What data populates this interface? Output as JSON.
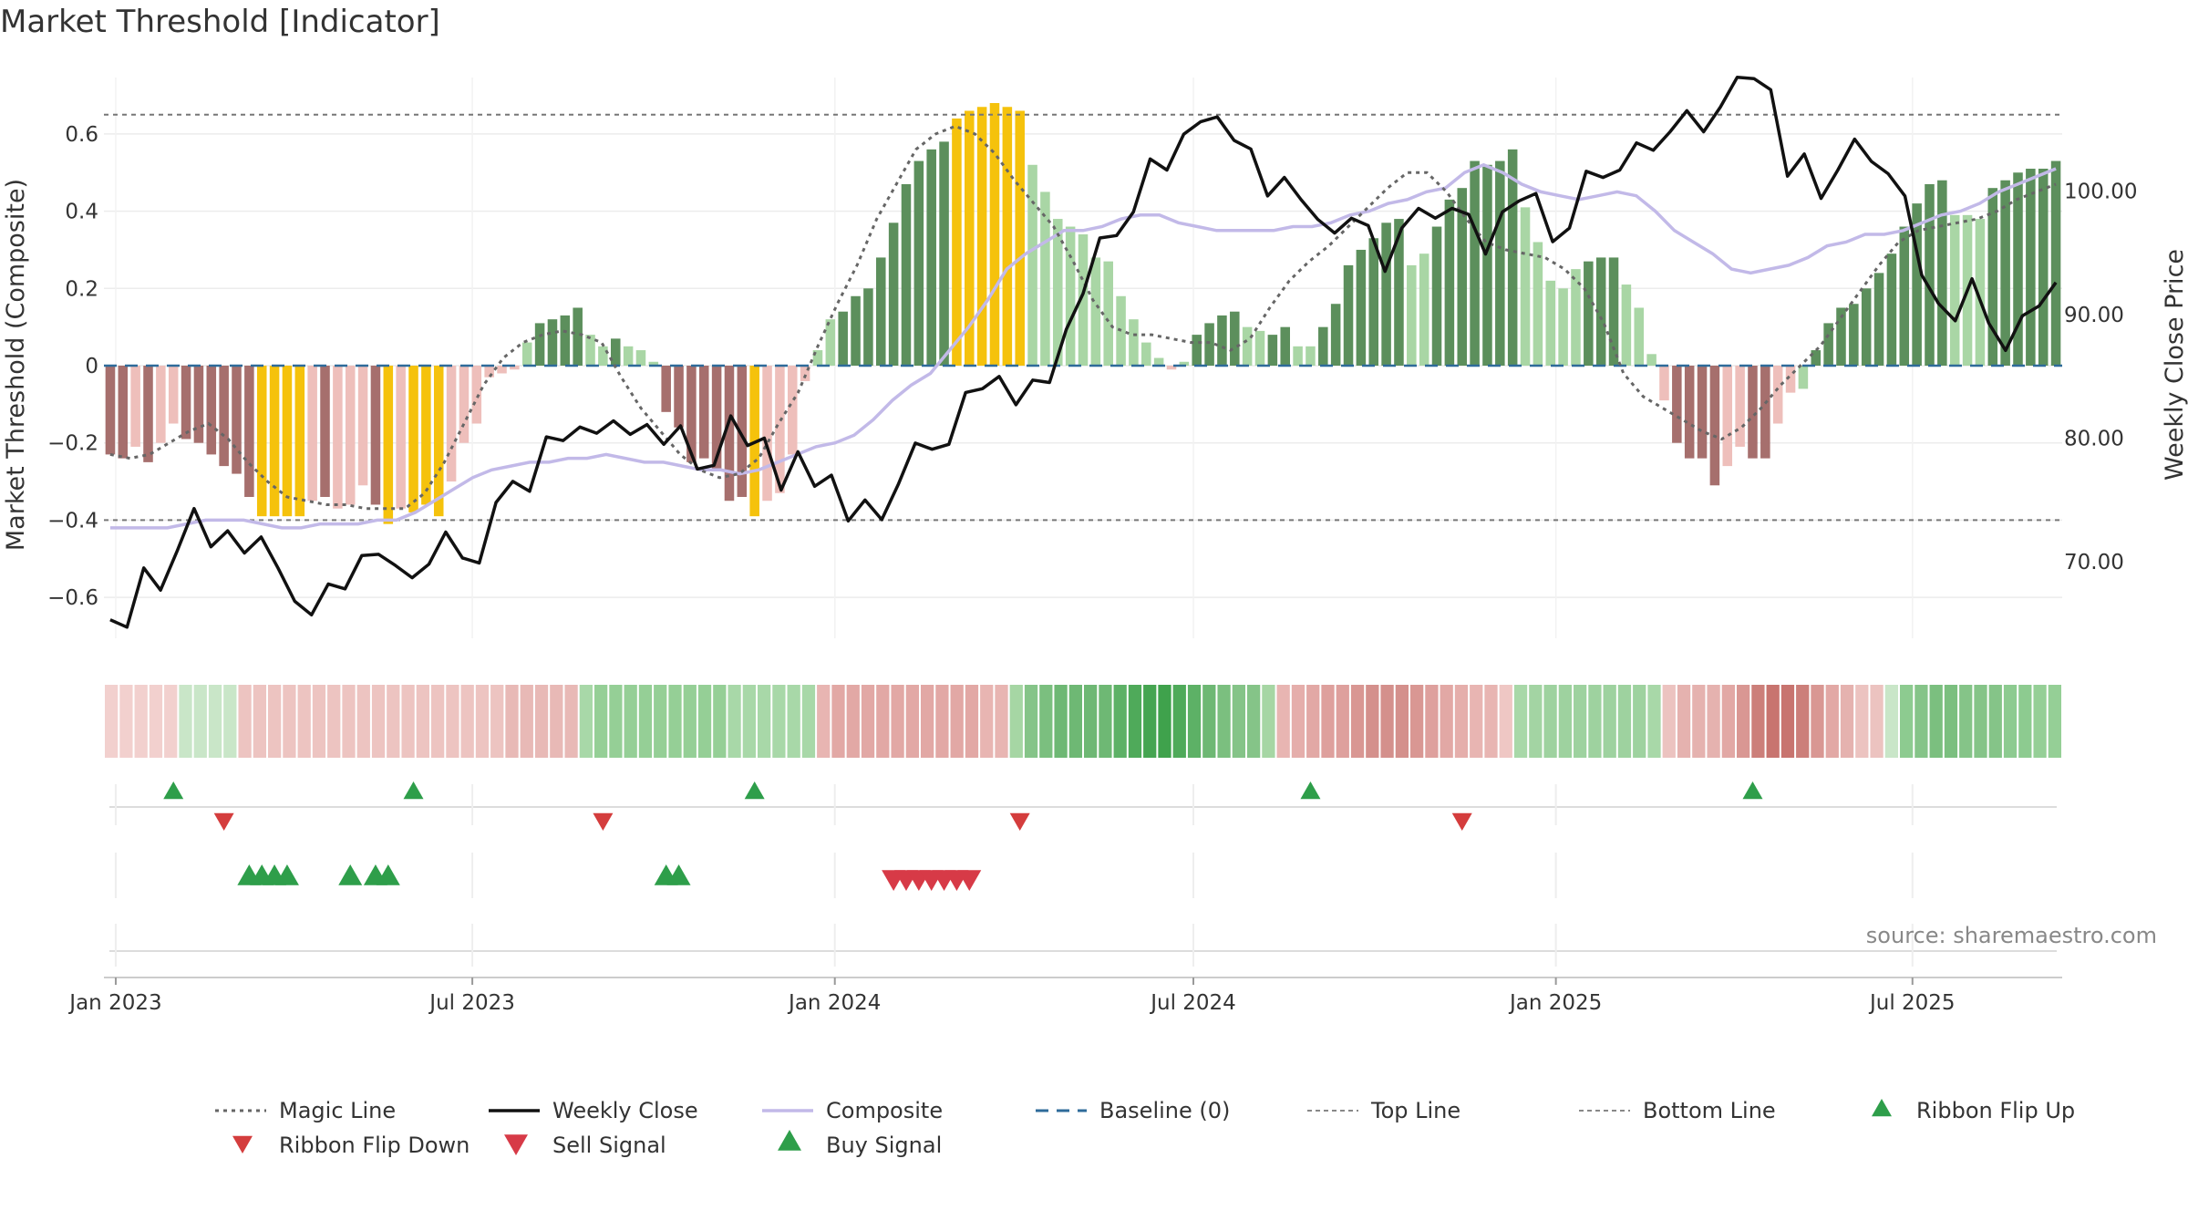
{
  "title": "Market Threshold [Indicator]",
  "source": "source: sharemaestro.com",
  "colors": {
    "strong_up": "#5c8f5c",
    "weak_up": "#a9d6a5",
    "strong_down": "#a66f6d",
    "weak_down": "#eebfbb",
    "extreme": "#f5c20c",
    "close": "#111111",
    "composite": "#c2b9e8",
    "magic": "#666666",
    "baseline": "#2e6b9a",
    "buy": "#2e9e4a",
    "sell": "#d73a47"
  },
  "chart_data": {
    "type": "bar+line",
    "title": "Market Threshold [Indicator]",
    "ylabel": "Market Threshold (Composite)",
    "y2label": "Weekly Close Price",
    "ylim": [
      -0.75,
      0.75
    ],
    "y2lim": [
      62.5,
      109.4
    ],
    "yticks": [
      0.6,
      0.4,
      0.2,
      0,
      -0.2,
      -0.4,
      -0.6
    ],
    "ytick_labels": [
      "0.6",
      "0.4",
      "0.2",
      "0",
      "−0.2",
      "−0.4",
      "−0.6"
    ],
    "y2ticks": [
      100,
      90,
      80,
      70
    ],
    "y2tick_labels": [
      "100.00",
      "90.00",
      "80.00",
      "70.00"
    ],
    "top_line": 0.65,
    "bottom_line": -0.4,
    "x_start": "2022-12-26",
    "x_end": "2025-09-15",
    "xticks": [
      "2023-01-01",
      "2023-07-01",
      "2024-01-01",
      "2024-07-01",
      "2025-01-01",
      "2025-07-01"
    ],
    "xtick_labels": [
      "Jan 2023",
      "Jul 2023",
      "Jan 2024",
      "Jul 2024",
      "Jan 2025",
      "Jul 2025"
    ],
    "composite_bars": [
      -0.23,
      -0.24,
      -0.21,
      -0.25,
      -0.2,
      -0.15,
      -0.19,
      -0.2,
      -0.23,
      -0.26,
      -0.28,
      -0.34,
      -0.39,
      -0.39,
      -0.39,
      -0.39,
      -0.35,
      -0.34,
      -0.37,
      -0.36,
      -0.31,
      -0.36,
      -0.41,
      -0.37,
      -0.38,
      -0.36,
      -0.39,
      -0.3,
      -0.2,
      -0.15,
      -0.03,
      -0.02,
      -0.01,
      0.06,
      0.11,
      0.12,
      0.13,
      0.15,
      0.08,
      0.05,
      0.07,
      0.05,
      0.04,
      0.01,
      -0.12,
      -0.16,
      -0.25,
      -0.24,
      -0.27,
      -0.35,
      -0.34,
      -0.39,
      -0.35,
      -0.33,
      -0.23,
      -0.04,
      0.04,
      0.12,
      0.14,
      0.18,
      0.2,
      0.28,
      0.37,
      0.47,
      0.53,
      0.56,
      0.58,
      0.64,
      0.66,
      0.67,
      0.68,
      0.67,
      0.66,
      0.52,
      0.45,
      0.38,
      0.36,
      0.34,
      0.28,
      0.27,
      0.18,
      0.12,
      0.06,
      0.02,
      -0.01,
      0.01,
      0.08,
      0.11,
      0.13,
      0.14,
      0.1,
      0.09,
      0.08,
      0.1,
      0.05,
      0.05,
      0.1,
      0.16,
      0.26,
      0.3,
      0.33,
      0.37,
      0.38,
      0.26,
      0.29,
      0.36,
      0.43,
      0.46,
      0.53,
      0.52,
      0.53,
      0.56,
      0.41,
      0.32,
      0.22,
      0.2,
      0.25,
      0.27,
      0.28,
      0.28,
      0.21,
      0.15,
      0.03,
      -0.09,
      -0.2,
      -0.24,
      -0.24,
      -0.31,
      -0.26,
      -0.21,
      -0.24,
      -0.24,
      -0.15,
      -0.07,
      -0.06,
      0.04,
      0.11,
      0.15,
      0.16,
      0.2,
      0.24,
      0.29,
      0.36,
      0.42,
      0.47,
      0.48,
      0.39,
      0.39,
      0.38,
      0.46,
      0.48,
      0.5,
      0.51,
      0.51,
      0.53
    ],
    "bar_colors": [
      "sd",
      "sd",
      "wd",
      "sd",
      "wd",
      "wd",
      "sd",
      "sd",
      "sd",
      "sd",
      "sd",
      "sd",
      "ex",
      "ex",
      "ex",
      "ex",
      "wd",
      "sd",
      "wd",
      "wd",
      "wd",
      "sd",
      "ex",
      "wd",
      "ex",
      "ex",
      "ex",
      "wd",
      "wd",
      "wd",
      "wd",
      "wd",
      "wd",
      "wu",
      "su",
      "su",
      "su",
      "su",
      "wu",
      "wu",
      "su",
      "wu",
      "wu",
      "wu",
      "sd",
      "sd",
      "sd",
      "sd",
      "sd",
      "sd",
      "sd",
      "ex",
      "wd",
      "wd",
      "wd",
      "wd",
      "wu",
      "wu",
      "su",
      "su",
      "su",
      "su",
      "su",
      "su",
      "su",
      "su",
      "su",
      "ex",
      "ex",
      "ex",
      "ex",
      "ex",
      "ex",
      "wu",
      "wu",
      "wu",
      "wu",
      "wu",
      "wu",
      "wu",
      "wu",
      "wu",
      "wu",
      "wu",
      "wd",
      "wu",
      "su",
      "su",
      "su",
      "su",
      "wu",
      "wu",
      "su",
      "su",
      "wu",
      "wu",
      "su",
      "su",
      "su",
      "su",
      "su",
      "su",
      "su",
      "wu",
      "wu",
      "su",
      "su",
      "su",
      "su",
      "su",
      "su",
      "su",
      "wu",
      "wu",
      "wu",
      "wu",
      "wu",
      "su",
      "su",
      "su",
      "wu",
      "wu",
      "wu",
      "wd",
      "sd",
      "sd",
      "sd",
      "sd",
      "wd",
      "wd",
      "sd",
      "sd",
      "wd",
      "wd",
      "wu",
      "su",
      "su",
      "su",
      "su",
      "su",
      "su",
      "su",
      "su",
      "su",
      "su",
      "su",
      "wu",
      "wu",
      "wu",
      "su",
      "su",
      "su",
      "su",
      "su",
      "su"
    ],
    "weekly_close": [
      65.3,
      64.7,
      69.5,
      67.7,
      70.9,
      74.3,
      71.2,
      72.5,
      70.7,
      72,
      69.5,
      66.8,
      65.7,
      68.2,
      67.8,
      70.5,
      70.6,
      69.7,
      68.7,
      69.8,
      72.4,
      70.3,
      69.9,
      74.8,
      76.5,
      75.7,
      80.1,
      79.8,
      80.9,
      80.4,
      81.4,
      80.3,
      81.1,
      79.5,
      81,
      77.5,
      77.8,
      81.8,
      79.4,
      80,
      75.8,
      78.9,
      76.1,
      77,
      73.3,
      75,
      73.4,
      76.3,
      79.6,
      79.1,
      79.5,
      83.7,
      84,
      85,
      82.7,
      84.7,
      84.5,
      88.8,
      91.7,
      96.2,
      96.4,
      98.3,
      102.6,
      101.7,
      104.6,
      105.6,
      106,
      104.1,
      103.4,
      99.6,
      101.1,
      99.3,
      97.7,
      96.6,
      97.8,
      97.2,
      93.5,
      97,
      98.6,
      97.8,
      98.6,
      98.1,
      94.9,
      98.3,
      99.2,
      99.8,
      95.9,
      97,
      101.6,
      101.1,
      101.7,
      103.9,
      103.3,
      104.8,
      106.5,
      104.8,
      106.8,
      109.2,
      109.1,
      108.2,
      101.2,
      103,
      99.4,
      101.7,
      104.2,
      102.4,
      101.4,
      99.6,
      93.2,
      90.9,
      89.5,
      92.9,
      89.3,
      87.1,
      89.9,
      90.7,
      92.6
    ],
    "weekly_close_x_index_step": 1.3,
    "composite": [
      -0.42,
      -0.42,
      -0.42,
      -0.42,
      -0.41,
      -0.4,
      -0.4,
      -0.4,
      -0.41,
      -0.42,
      -0.42,
      -0.41,
      -0.41,
      -0.41,
      -0.4,
      -0.4,
      -0.38,
      -0.35,
      -0.32,
      -0.29,
      -0.27,
      -0.26,
      -0.25,
      -0.25,
      -0.24,
      -0.24,
      -0.23,
      -0.24,
      -0.25,
      -0.25,
      -0.26,
      -0.27,
      -0.27,
      -0.28,
      -0.27,
      -0.25,
      -0.23,
      -0.21,
      -0.2,
      -0.18,
      -0.14,
      -0.09,
      -0.05,
      -0.02,
      0.04,
      0.1,
      0.17,
      0.25,
      0.29,
      0.32,
      0.35,
      0.35,
      0.36,
      0.38,
      0.39,
      0.39,
      0.37,
      0.36,
      0.35,
      0.35,
      0.35,
      0.35,
      0.36,
      0.36,
      0.37,
      0.39,
      0.4,
      0.42,
      0.43,
      0.45,
      0.46,
      0.5,
      0.52,
      0.5,
      0.47,
      0.45,
      0.44,
      0.43,
      0.44,
      0.45,
      0.44,
      0.4,
      0.35,
      0.32,
      0.29,
      0.25,
      0.24,
      0.25,
      0.26,
      0.28,
      0.31,
      0.32,
      0.34,
      0.34,
      0.35,
      0.37,
      0.39,
      0.4,
      0.42,
      0.45,
      0.47,
      0.49,
      0.51
    ],
    "magic_line": [
      -0.23,
      -0.24,
      -0.23,
      -0.2,
      -0.17,
      -0.15,
      -0.19,
      -0.25,
      -0.3,
      -0.34,
      -0.35,
      -0.36,
      -0.36,
      -0.37,
      -0.37,
      -0.37,
      -0.33,
      -0.25,
      -0.15,
      -0.05,
      0.02,
      0.06,
      0.08,
      0.09,
      0.08,
      0.06,
      -0.03,
      -0.11,
      -0.17,
      -0.23,
      -0.27,
      -0.29,
      -0.28,
      -0.24,
      -0.15,
      -0.07,
      0.05,
      0.16,
      0.26,
      0.38,
      0.47,
      0.56,
      0.6,
      0.62,
      0.6,
      0.55,
      0.48,
      0.42,
      0.36,
      0.27,
      0.17,
      0.1,
      0.08,
      0.08,
      0.07,
      0.06,
      0.06,
      0.04,
      0.07,
      0.15,
      0.22,
      0.27,
      0.31,
      0.36,
      0.41,
      0.46,
      0.5,
      0.5,
      0.45,
      0.38,
      0.32,
      0.3,
      0.29,
      0.28,
      0.25,
      0.2,
      0.11,
      -0.02,
      -0.08,
      -0.11,
      -0.14,
      -0.17,
      -0.19,
      -0.16,
      -0.11,
      -0.05,
      0.0,
      0.05,
      0.12,
      0.19,
      0.26,
      0.32,
      0.35,
      0.36,
      0.37,
      0.38,
      0.4,
      0.43,
      0.45,
      0.47
    ],
    "ribbon": [
      "#f2d0ce",
      "#f2d0ce",
      "#f2d0ce",
      "#f2d0ce",
      "#f2d0ce",
      "#c9e6c8",
      "#c9e6c8",
      "#c9e6c8",
      "#c9e6c8",
      "#edc4c1",
      "#edc4c1",
      "#edc4c1",
      "#edc4c1",
      "#edc4c1",
      "#edc4c1",
      "#edc4c1",
      "#edc4c1",
      "#edc4c1",
      "#edc4c1",
      "#edc4c1",
      "#edc4c1",
      "#edc4c1",
      "#edc4c1",
      "#edc4c1",
      "#edc4c1",
      "#edc4c1",
      "#edc4c1",
      "#e8b9b6",
      "#e8b9b6",
      "#e8b9b6",
      "#e8b9b6",
      "#e8b9b6",
      "#a8d8a8",
      "#95cf96",
      "#95cf96",
      "#95cf96",
      "#95cf96",
      "#95cf96",
      "#95cf96",
      "#95cf96",
      "#95cf96",
      "#95cf96",
      "#a8d8a8",
      "#a8d8a8",
      "#a8d8a8",
      "#a8d8a8",
      "#a8d8a8",
      "#a8d8a8",
      "#e8b5b2",
      "#e2a8a5",
      "#e2a8a5",
      "#e2a8a5",
      "#e2a8a5",
      "#e2a8a5",
      "#e2a8a5",
      "#e2a8a5",
      "#e2a8a5",
      "#e2a8a5",
      "#e2a8a5",
      "#e8b5b2",
      "#e8b5b2",
      "#a6d6a4",
      "#85c488",
      "#7bbf7f",
      "#6eb874",
      "#6eb874",
      "#6eb874",
      "#6eb874",
      "#5db166",
      "#4faa5a",
      "#45a551",
      "#3fa24c",
      "#4faa5a",
      "#5db166",
      "#6eb874",
      "#7bbf7f",
      "#85c488",
      "#85c488",
      "#a6d6a4",
      "#e8b5b2",
      "#e5aeab",
      "#e2a8a5",
      "#dea09d",
      "#dea09d",
      "#d99793",
      "#d4908c",
      "#d4908c",
      "#d4908c",
      "#d99793",
      "#dea09d",
      "#e2a8a5",
      "#e5aeab",
      "#e8b5b2",
      "#e8b5b2",
      "#efc7c4",
      "#a8d8a8",
      "#a3d4a3",
      "#9ed29f",
      "#9ed29f",
      "#9ed29f",
      "#9ed29f",
      "#9ed29f",
      "#9ed29f",
      "#9ed29f",
      "#a8d8a8",
      "#ecc3c0",
      "#e5b2af",
      "#e5b2af",
      "#e5b2af",
      "#e2a8a5",
      "#d99793",
      "#cc7f7a",
      "#c8746f",
      "#c8746f",
      "#cc7f7a",
      "#d99793",
      "#e2a8a5",
      "#e5b2af",
      "#ecc3c0",
      "#ecc3c0",
      "#c9e6c8",
      "#8dcb90",
      "#85c488",
      "#7bbf7f",
      "#7bbf7f",
      "#85c488",
      "#85c488",
      "#85c488",
      "#8dcb90",
      "#8dcb90",
      "#95cf96",
      "#95cf96"
    ],
    "ribbon_flip_up_weeks": [
      5,
      24,
      51,
      95,
      130
    ],
    "ribbon_flip_down_weeks": [
      9,
      39,
      72,
      107
    ],
    "buy_signal_weeks": [
      11,
      12,
      13,
      14,
      19,
      21,
      22,
      44,
      45
    ],
    "sell_signal_weeks": [
      62,
      63,
      64,
      65,
      66,
      67,
      68
    ],
    "legend": [
      "Magic Line",
      "Weekly Close",
      "Composite",
      "Baseline (0)",
      "Top Line",
      "Bottom Line",
      "Ribbon Flip Up",
      "Ribbon Flip Down",
      "Sell Signal",
      "Buy Signal"
    ]
  }
}
